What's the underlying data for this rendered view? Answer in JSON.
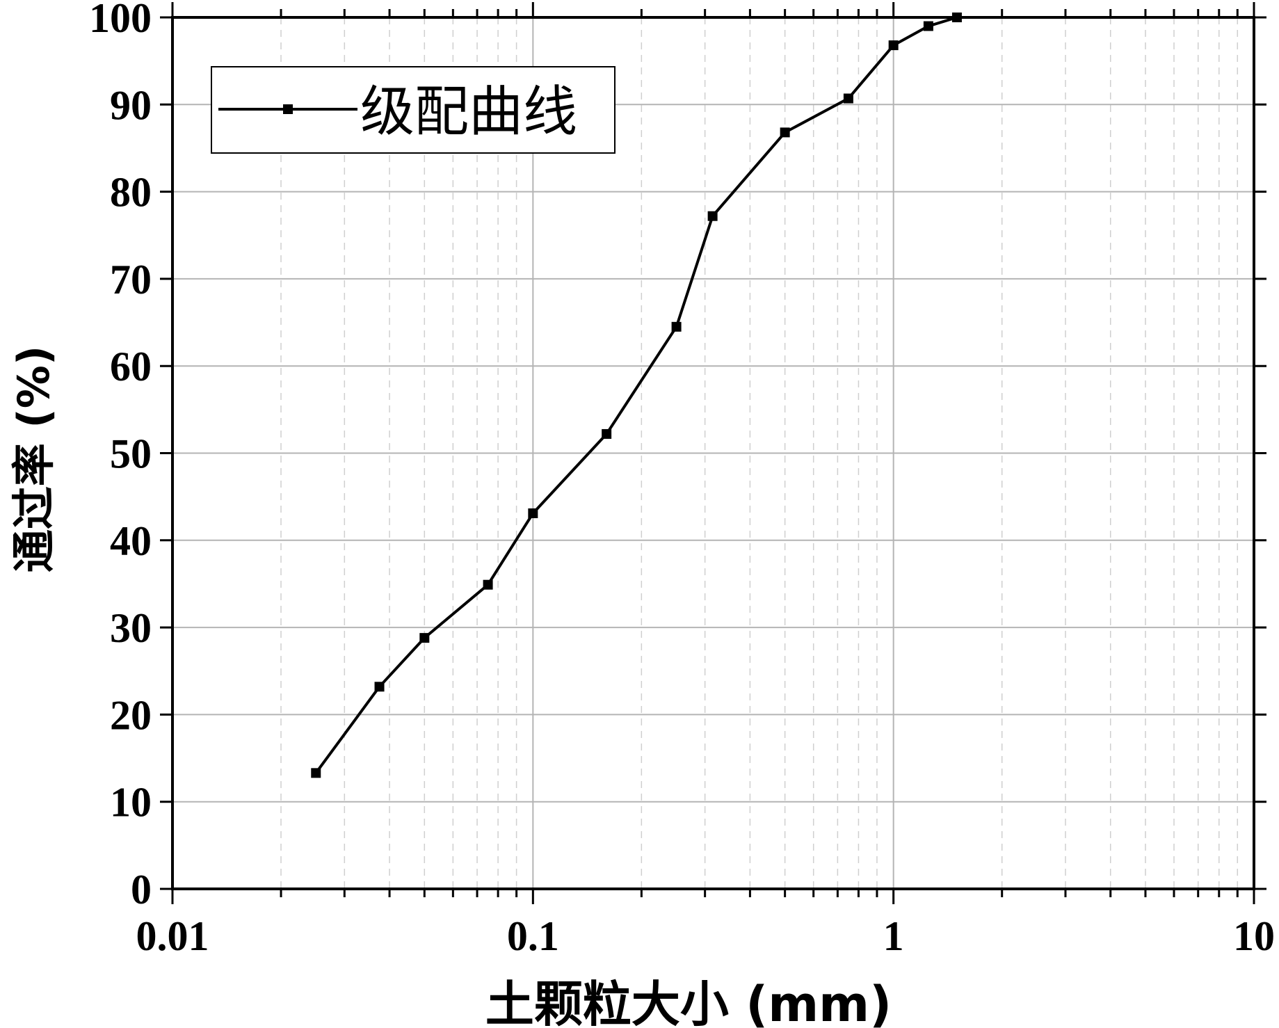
{
  "chart_data": {
    "type": "line",
    "xlabel": "土颗粒大小 (mm)",
    "ylabel": "通过率 (%)",
    "x_scale": "log",
    "xlim": [
      0.01,
      10
    ],
    "ylim": [
      0,
      100
    ],
    "x_ticks": [
      "0.01",
      "0.1",
      "1",
      "10"
    ],
    "y_ticks": [
      "0",
      "10",
      "20",
      "30",
      "40",
      "50",
      "60",
      "70",
      "80",
      "90",
      "100"
    ],
    "grid": true,
    "legend_position": "top-left",
    "series": [
      {
        "name": "级配曲线",
        "color": "#000000",
        "marker": "square",
        "x": [
          0.025,
          0.0375,
          0.05,
          0.075,
          0.1,
          0.16,
          0.25,
          0.315,
          0.5,
          0.75,
          1.0,
          1.25,
          1.5
        ],
        "y": [
          13.3,
          23.2,
          28.8,
          34.9,
          43.1,
          52.2,
          64.5,
          77.2,
          86.8,
          90.7,
          96.8,
          99.0,
          100.0
        ]
      }
    ]
  }
}
